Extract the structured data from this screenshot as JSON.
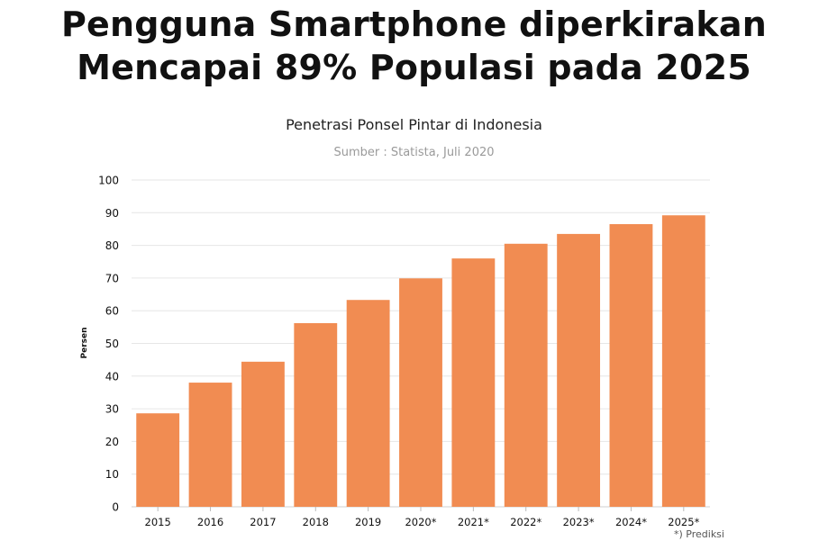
{
  "headline": {
    "line1": "Pengguna Smartphone diperkirakan",
    "line2": "Mencapai 89% Populasi pada 2025"
  },
  "footnote": "*) Prediksi",
  "colors": {
    "bar": "#f18c52",
    "grid": "#e6e6e6",
    "text": "#111111"
  },
  "chart_data": {
    "type": "bar",
    "title": "Penetrasi Ponsel Pintar di Indonesia",
    "subtitle": "Sumber : Statista, Juli 2020",
    "xlabel": "",
    "ylabel": "Persen",
    "ylim": [
      0,
      100
    ],
    "yticks": [
      0,
      10,
      20,
      30,
      40,
      50,
      60,
      70,
      80,
      90,
      100
    ],
    "grid": true,
    "categories": [
      "2015",
      "2016",
      "2017",
      "2018",
      "2019",
      "2020*",
      "2021*",
      "2022*",
      "2023*",
      "2024*",
      "2025*"
    ],
    "values": [
      28.6,
      38.0,
      44.4,
      56.2,
      63.3,
      69.9,
      76.0,
      80.5,
      83.5,
      86.5,
      89.2
    ]
  }
}
